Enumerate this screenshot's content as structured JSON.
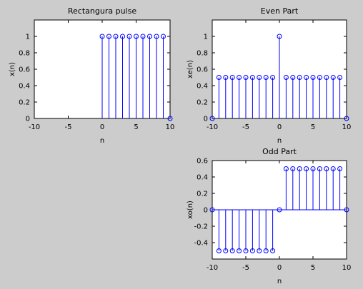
{
  "figure": {
    "background": "#cccccc",
    "axes_background": "#ffffff",
    "stem_color": "#0000ff"
  },
  "chart_data": [
    {
      "type": "stem",
      "title": "Rectangura pulse",
      "xlabel": "n",
      "ylabel": "x(n)",
      "xlim": [
        -10,
        10
      ],
      "ylim": [
        0,
        1.2
      ],
      "xticks": [
        -10,
        -5,
        0,
        5,
        10
      ],
      "yticks": [
        0,
        0.2,
        0.4,
        0.6,
        0.8,
        1
      ],
      "x": [
        0,
        1,
        2,
        3,
        4,
        5,
        6,
        7,
        8,
        9,
        10
      ],
      "y": [
        1,
        1,
        1,
        1,
        1,
        1,
        1,
        1,
        1,
        1,
        0
      ]
    },
    {
      "type": "stem",
      "title": "Even Part",
      "xlabel": "n",
      "ylabel": "xe(n)",
      "xlim": [
        -10,
        10
      ],
      "ylim": [
        0,
        1.2
      ],
      "xticks": [
        -10,
        -5,
        0,
        5,
        10
      ],
      "yticks": [
        0,
        0.2,
        0.4,
        0.6,
        0.8,
        1
      ],
      "x": [
        -10,
        -9,
        -8,
        -7,
        -6,
        -5,
        -4,
        -3,
        -2,
        -1,
        0,
        1,
        2,
        3,
        4,
        5,
        6,
        7,
        8,
        9,
        10
      ],
      "y": [
        0,
        0.5,
        0.5,
        0.5,
        0.5,
        0.5,
        0.5,
        0.5,
        0.5,
        0.5,
        1,
        0.5,
        0.5,
        0.5,
        0.5,
        0.5,
        0.5,
        0.5,
        0.5,
        0.5,
        0
      ]
    },
    {
      "type": "stem",
      "title": "Odd Part",
      "xlabel": "n",
      "ylabel": "xo(n)",
      "xlim": [
        -10,
        10
      ],
      "ylim": [
        -0.6,
        0.6
      ],
      "xticks": [
        -10,
        -5,
        0,
        5,
        10
      ],
      "yticks": [
        -0.4,
        -0.2,
        0,
        0.2,
        0.4,
        0.6
      ],
      "x": [
        -10,
        -9,
        -8,
        -7,
        -6,
        -5,
        -4,
        -3,
        -2,
        -1,
        0,
        1,
        2,
        3,
        4,
        5,
        6,
        7,
        8,
        9,
        10
      ],
      "y": [
        0,
        -0.5,
        -0.5,
        -0.5,
        -0.5,
        -0.5,
        -0.5,
        -0.5,
        -0.5,
        -0.5,
        0,
        0.5,
        0.5,
        0.5,
        0.5,
        0.5,
        0.5,
        0.5,
        0.5,
        0.5,
        0
      ]
    }
  ]
}
